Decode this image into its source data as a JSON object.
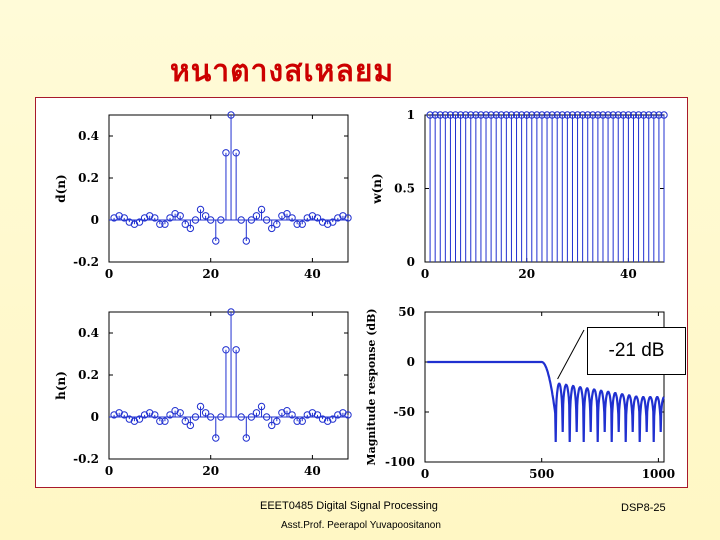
{
  "slide": {
    "title": "หนาตางสเหลยม",
    "callout": "-21 dB",
    "footer_course": "EEET0485 Digital Signal Processing",
    "footer_author": "Asst.Prof. Peerapol Yuvapoositanon",
    "footer_page": "DSP8-25"
  },
  "colors": {
    "title": "#cc0000",
    "stem": "#2030d0",
    "frame": "#a8192b",
    "background": "#fff8c8"
  },
  "chart_data": [
    {
      "id": "dn",
      "type": "stem",
      "ylabel": "d(n)",
      "xlim": [
        0,
        47
      ],
      "ylim": [
        -0.2,
        0.5
      ],
      "xticks": [
        0,
        20,
        40
      ],
      "yticks": [
        -0.2,
        0,
        0.2,
        0.4
      ],
      "ytick_labels": [
        "-0.2",
        "0",
        "0.2",
        "0.4"
      ],
      "x": [
        1,
        2,
        3,
        4,
        5,
        6,
        7,
        8,
        9,
        10,
        11,
        12,
        13,
        14,
        15,
        16,
        17,
        18,
        19,
        20,
        21,
        22,
        23,
        24,
        25,
        26,
        27,
        28,
        29,
        30,
        31,
        32,
        33,
        34,
        35,
        36,
        37,
        38,
        39,
        40,
        41,
        42,
        43,
        44,
        45,
        46,
        47
      ],
      "values": [
        0.01,
        0.02,
        0.01,
        -0.01,
        -0.02,
        -0.01,
        0.01,
        0.02,
        0.01,
        -0.02,
        -0.02,
        0.01,
        0.03,
        0.02,
        -0.02,
        -0.04,
        0.0,
        0.05,
        0.02,
        0.0,
        -0.1,
        0.0,
        0.32,
        0.5,
        0.32,
        0.0,
        -0.1,
        0.0,
        0.02,
        0.05,
        0.0,
        -0.04,
        -0.02,
        0.02,
        0.03,
        0.01,
        -0.02,
        -0.02,
        0.01,
        0.02,
        0.01,
        -0.01,
        -0.02,
        -0.01,
        0.01,
        0.02,
        0.01
      ]
    },
    {
      "id": "wn",
      "type": "stem",
      "ylabel": "w(n)",
      "xlim": [
        0,
        47
      ],
      "ylim": [
        0,
        1
      ],
      "xticks": [
        0,
        20,
        40
      ],
      "yticks": [
        0,
        0.5,
        1
      ],
      "ytick_labels": [
        "0",
        "0.5",
        "1"
      ],
      "n_start": 1,
      "n_end": 47,
      "constant_value": 1
    },
    {
      "id": "hn",
      "type": "stem",
      "ylabel": "h(n)",
      "xlim": [
        0,
        47
      ],
      "ylim": [
        -0.2,
        0.5
      ],
      "xticks": [
        0,
        20,
        40
      ],
      "yticks": [
        -0.2,
        0,
        0.2,
        0.4
      ],
      "ytick_labels": [
        "-0.2",
        "0",
        "0.2",
        "0.4"
      ],
      "x": [
        1,
        2,
        3,
        4,
        5,
        6,
        7,
        8,
        9,
        10,
        11,
        12,
        13,
        14,
        15,
        16,
        17,
        18,
        19,
        20,
        21,
        22,
        23,
        24,
        25,
        26,
        27,
        28,
        29,
        30,
        31,
        32,
        33,
        34,
        35,
        36,
        37,
        38,
        39,
        40,
        41,
        42,
        43,
        44,
        45,
        46,
        47
      ],
      "values": [
        0.01,
        0.02,
        0.01,
        -0.01,
        -0.02,
        -0.01,
        0.01,
        0.02,
        0.01,
        -0.02,
        -0.02,
        0.01,
        0.03,
        0.02,
        -0.02,
        -0.04,
        0.0,
        0.05,
        0.02,
        0.0,
        -0.1,
        0.0,
        0.32,
        0.5,
        0.32,
        0.0,
        -0.1,
        0.0,
        0.02,
        0.05,
        0.0,
        -0.04,
        -0.02,
        0.02,
        0.03,
        0.01,
        -0.02,
        -0.02,
        0.01,
        0.02,
        0.01,
        -0.01,
        -0.02,
        -0.01,
        0.01,
        0.02,
        0.01
      ]
    },
    {
      "id": "mag",
      "type": "line",
      "ylabel": "Magnitude response (dB)",
      "xlim": [
        0,
        1024
      ],
      "ylim": [
        -100,
        50
      ],
      "xticks": [
        0,
        500,
        1000
      ],
      "yticks": [
        -100,
        -50,
        0,
        50
      ],
      "ytick_labels": [
        "-100",
        "-50",
        "0",
        "50"
      ],
      "passband_end": 500,
      "stopband_start": 560,
      "stopband_end": 1024,
      "lobe_width": 30,
      "first_sidelobe_db": -21,
      "late_sidelobe_db": -35,
      "null_depth_db": -80
    }
  ]
}
